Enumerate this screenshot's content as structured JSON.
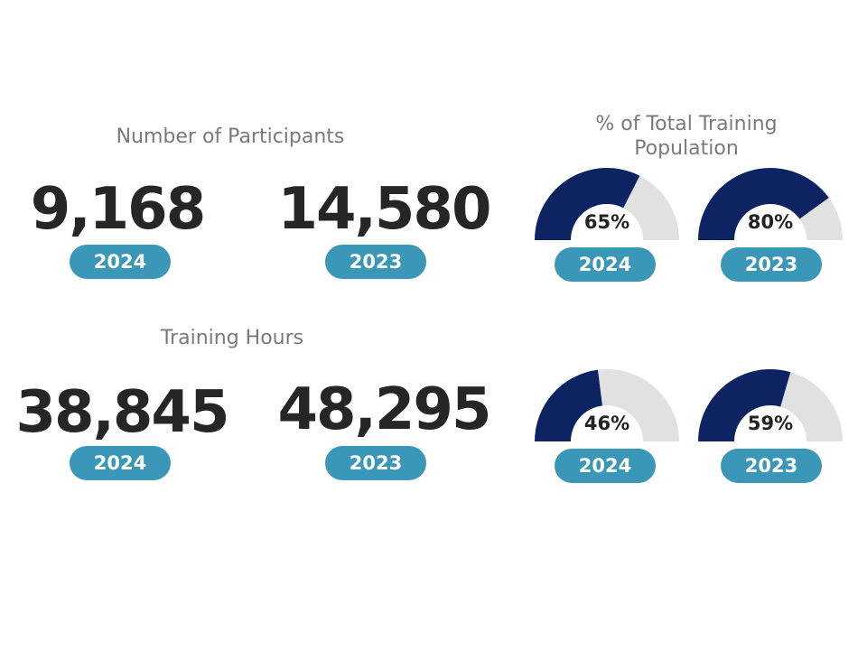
{
  "colors": {
    "heading": "#7a7a7a",
    "number": "#262626",
    "pill": "#3a97b7",
    "gauge_fill": "#0e2462",
    "gauge_track": "#e1e1e1"
  },
  "participants": {
    "title": "Number of Participants",
    "items": [
      {
        "value": "9,168",
        "year": "2024"
      },
      {
        "value": "14,580",
        "year": "2023"
      }
    ]
  },
  "hours": {
    "title": "Training Hours",
    "items": [
      {
        "value": "38,845",
        "year": "2024"
      },
      {
        "value": "48,295",
        "year": "2023"
      }
    ]
  },
  "population": {
    "title_line1": "% of Total Training",
    "title_line2": "Population"
  },
  "chart_data": [
    {
      "type": "gauge",
      "title": "% of Total Training Population",
      "metric": "Number of Participants",
      "series": [
        {
          "name": "2024",
          "value": 65,
          "label": "65%"
        },
        {
          "name": "2023",
          "value": 80,
          "label": "80%"
        }
      ],
      "max": 100
    },
    {
      "type": "gauge",
      "title": "% of Total Training Population",
      "metric": "Training Hours",
      "series": [
        {
          "name": "2024",
          "value": 46,
          "label": "46%"
        },
        {
          "name": "2023",
          "value": 59,
          "label": "59%"
        }
      ],
      "max": 100
    }
  ]
}
